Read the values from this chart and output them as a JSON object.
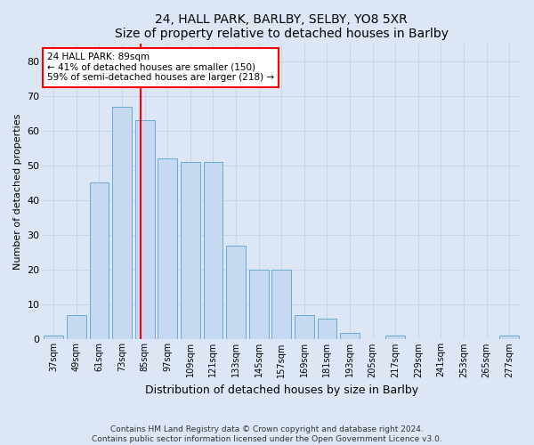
{
  "title": "24, HALL PARK, BARLBY, SELBY, YO8 5XR",
  "subtitle": "Size of property relative to detached houses in Barlby",
  "xlabel": "Distribution of detached houses by size in Barlby",
  "ylabel": "Number of detached properties",
  "categories": [
    "37sqm",
    "49sqm",
    "61sqm",
    "73sqm",
    "85sqm",
    "97sqm",
    "109sqm",
    "121sqm",
    "133sqm",
    "145sqm",
    "157sqm",
    "169sqm",
    "181sqm",
    "193sqm",
    "205sqm",
    "217sqm",
    "229sqm",
    "241sqm",
    "253sqm",
    "265sqm",
    "277sqm"
  ],
  "values": [
    1,
    7,
    45,
    67,
    63,
    52,
    51,
    51,
    27,
    20,
    20,
    7,
    6,
    2,
    0,
    1,
    0,
    0,
    0,
    0,
    1
  ],
  "bar_color": "#c5d9f0",
  "bar_edge_color": "#6aaad4",
  "bar_width": 0.85,
  "ylim": [
    0,
    85
  ],
  "yticks": [
    0,
    10,
    20,
    30,
    40,
    50,
    60,
    70,
    80
  ],
  "property_label": "24 HALL PARK: 89sqm",
  "annotation_line1": "← 41% of detached houses are smaller (150)",
  "annotation_line2": "59% of semi-detached houses are larger (218) →",
  "annotation_box_color": "white",
  "annotation_box_edge_color": "red",
  "vline_color": "red",
  "grid_color": "#c8d4e8",
  "footnote1": "Contains HM Land Registry data © Crown copyright and database right 2024.",
  "footnote2": "Contains public sector information licensed under the Open Government Licence v3.0.",
  "background_color": "#dce6f5",
  "plot_bg_color": "#dce6f5"
}
